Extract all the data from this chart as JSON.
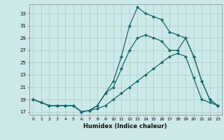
{
  "title": "",
  "xlabel": "Humidex (Indice chaleur)",
  "bg_color": "#cce8e8",
  "grid_color": "#aacccc",
  "line_color": "#1a6b6b",
  "marker": "D",
  "markersize": 2.0,
  "linewidth": 0.9,
  "xlim": [
    -0.5,
    23.5
  ],
  "ylim": [
    16.5,
    34.5
  ],
  "xticks": [
    0,
    1,
    2,
    3,
    4,
    5,
    6,
    7,
    8,
    9,
    10,
    11,
    12,
    13,
    14,
    15,
    16,
    17,
    18,
    19,
    20,
    21,
    22,
    23
  ],
  "yticks": [
    17,
    19,
    21,
    23,
    25,
    27,
    29,
    31,
    33
  ],
  "curve1_x": [
    0,
    1,
    2,
    3,
    4,
    5,
    6,
    7,
    8,
    9,
    10,
    11,
    12,
    13,
    14,
    15,
    16,
    17,
    18,
    19,
    20,
    21,
    22,
    23
  ],
  "curve1_y": [
    19,
    18.5,
    18,
    18,
    18,
    18,
    17,
    17.2,
    17.5,
    18,
    19,
    20,
    21,
    22,
    23,
    24,
    25,
    26,
    26.5,
    26,
    22.5,
    19,
    18.5,
    18
  ],
  "curve2_x": [
    0,
    1,
    2,
    3,
    4,
    5,
    6,
    7,
    8,
    9,
    10,
    11,
    12,
    13,
    14,
    15,
    16,
    17,
    18,
    19,
    20,
    21,
    22,
    23
  ],
  "curve2_y": [
    19,
    18.5,
    18,
    18,
    18,
    18,
    17,
    17.2,
    18,
    20,
    21,
    24,
    27,
    29,
    29.5,
    29,
    28.5,
    27,
    27,
    29,
    26,
    22,
    19,
    18
  ],
  "curve3_x": [
    0,
    1,
    2,
    3,
    4,
    5,
    6,
    7,
    8,
    9,
    10,
    11,
    12,
    13,
    14,
    15,
    16,
    17,
    18,
    19,
    20,
    21,
    22,
    23
  ],
  "curve3_y": [
    19,
    18.5,
    18,
    18,
    18,
    18,
    17,
    17.2,
    18,
    20,
    22,
    26,
    31,
    34,
    33,
    32.5,
    32,
    30,
    29.5,
    29,
    26,
    22,
    19,
    18
  ]
}
